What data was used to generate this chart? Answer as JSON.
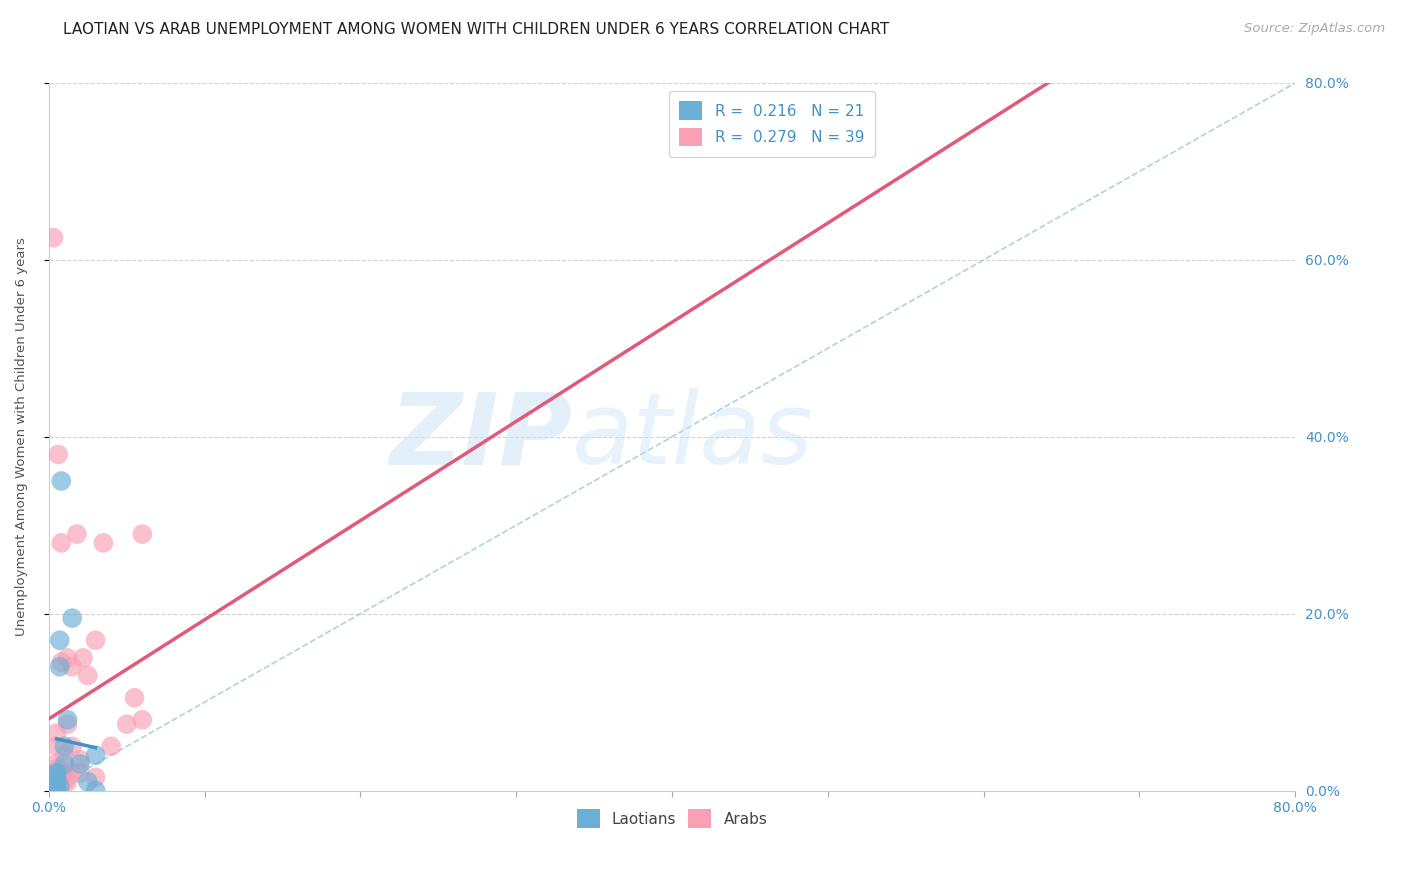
{
  "title": "LAOTIAN VS ARAB UNEMPLOYMENT AMONG WOMEN WITH CHILDREN UNDER 6 YEARS CORRELATION CHART",
  "source": "Source: ZipAtlas.com",
  "ylabel": "Unemployment Among Women with Children Under 6 years",
  "watermark_zip": "ZIP",
  "watermark_atlas": "atlas",
  "xlim": [
    0.0,
    0.8
  ],
  "ylim": [
    0.0,
    0.8
  ],
  "yticks_right": [
    0.0,
    0.2,
    0.4,
    0.6,
    0.8
  ],
  "ytick_labels_right": [
    "0.0%",
    "20.0%",
    "40.0%",
    "60.0%",
    "80.0%"
  ],
  "xtick_minor_positions": [
    0.0,
    0.1,
    0.2,
    0.3,
    0.4,
    0.5,
    0.6,
    0.7,
    0.8
  ],
  "laotian_color": "#6baed6",
  "arab_color": "#fa9fb5",
  "laotian_R": 0.216,
  "laotian_N": 21,
  "arab_R": 0.279,
  "arab_N": 39,
  "laotian_scatter_x": [
    0.005,
    0.005,
    0.005,
    0.005,
    0.005,
    0.005,
    0.005,
    0.005,
    0.005,
    0.007,
    0.007,
    0.007,
    0.008,
    0.01,
    0.01,
    0.012,
    0.015,
    0.02,
    0.025,
    0.03,
    0.03
  ],
  "laotian_scatter_y": [
    0.0,
    0.0,
    0.0,
    0.005,
    0.01,
    0.01,
    0.015,
    0.02,
    0.02,
    0.14,
    0.17,
    0.005,
    0.35,
    0.03,
    0.05,
    0.08,
    0.195,
    0.03,
    0.01,
    0.04,
    0.0
  ],
  "arab_scatter_x": [
    0.003,
    0.003,
    0.003,
    0.003,
    0.003,
    0.004,
    0.004,
    0.004,
    0.004,
    0.005,
    0.005,
    0.005,
    0.006,
    0.007,
    0.008,
    0.008,
    0.008,
    0.01,
    0.01,
    0.01,
    0.012,
    0.012,
    0.012,
    0.015,
    0.015,
    0.015,
    0.018,
    0.02,
    0.02,
    0.022,
    0.025,
    0.03,
    0.03,
    0.035,
    0.04,
    0.05,
    0.055,
    0.06,
    0.06
  ],
  "arab_scatter_y": [
    0.0,
    0.005,
    0.01,
    0.015,
    0.625,
    0.0,
    0.01,
    0.02,
    0.03,
    0.025,
    0.05,
    0.065,
    0.38,
    0.015,
    0.02,
    0.145,
    0.28,
    0.01,
    0.02,
    0.04,
    0.01,
    0.075,
    0.15,
    0.02,
    0.05,
    0.14,
    0.29,
    0.02,
    0.035,
    0.15,
    0.13,
    0.015,
    0.17,
    0.28,
    0.05,
    0.075,
    0.105,
    0.08,
    0.29
  ],
  "laotian_line_color": "#4292c6",
  "arab_line_color": "#e05a7a",
  "diagonal_color": "#9ecae1",
  "grid_color": "#d3d3d3",
  "background_color": "#ffffff",
  "title_fontsize": 11,
  "axis_label_fontsize": 9.5,
  "tick_fontsize": 10,
  "legend_fontsize": 11,
  "source_fontsize": 9.5
}
